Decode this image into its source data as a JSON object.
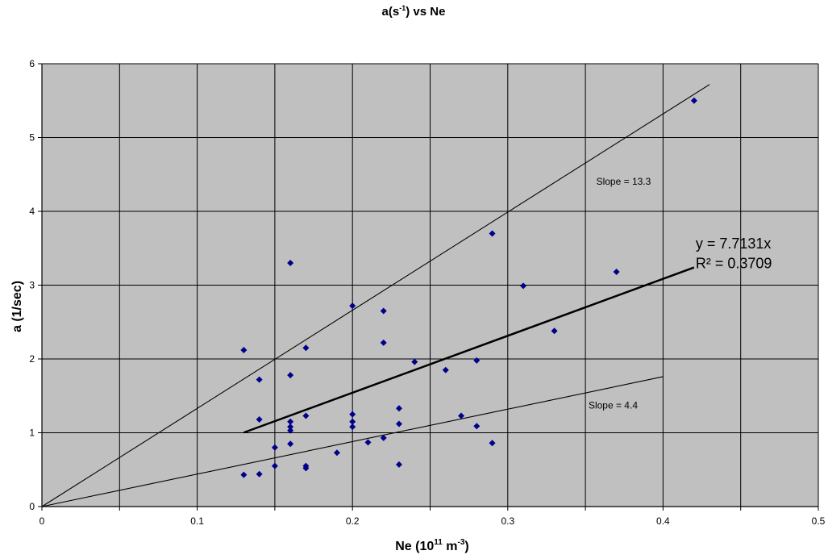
{
  "chart_data": {
    "type": "scatter",
    "title": "a(s",
    "title_sup": "-1",
    "title_rest": ") vs Ne",
    "xlabel": "Ne (10",
    "xlabel_sup1": "11",
    "xlabel_mid": " m",
    "xlabel_sup2": "-3",
    "xlabel_end": ")",
    "ylabel": "a (1/sec)",
    "xlim": [
      0,
      0.5
    ],
    "ylim": [
      0,
      6
    ],
    "xticks": [
      0,
      0.05,
      0.1,
      0.15,
      0.2,
      0.25,
      0.3,
      0.35,
      0.4,
      0.45,
      0.5
    ],
    "xtick_labels": [
      "0",
      "0.1",
      "0.2",
      "0.3",
      "0.4",
      "0.5"
    ],
    "xtick_label_values": [
      0,
      0.1,
      0.2,
      0.3,
      0.4,
      0.5
    ],
    "yticks": [
      0,
      1,
      2,
      3,
      4,
      5,
      6
    ],
    "ytick_labels": [
      "0",
      "1",
      "2",
      "3",
      "4",
      "5",
      "6"
    ],
    "grid": true,
    "plot_background": "#c0c0c0",
    "marker_color": "#00008b",
    "points": [
      [
        0.13,
        2.12
      ],
      [
        0.13,
        0.43
      ],
      [
        0.14,
        1.72
      ],
      [
        0.14,
        1.18
      ],
      [
        0.14,
        0.44
      ],
      [
        0.15,
        0.8
      ],
      [
        0.15,
        0.55
      ],
      [
        0.16,
        3.3
      ],
      [
        0.16,
        1.78
      ],
      [
        0.16,
        1.15
      ],
      [
        0.16,
        1.08
      ],
      [
        0.16,
        1.03
      ],
      [
        0.16,
        0.85
      ],
      [
        0.17,
        2.15
      ],
      [
        0.17,
        1.23
      ],
      [
        0.17,
        0.55
      ],
      [
        0.17,
        0.52
      ],
      [
        0.19,
        0.73
      ],
      [
        0.2,
        2.72
      ],
      [
        0.2,
        1.25
      ],
      [
        0.2,
        1.15
      ],
      [
        0.2,
        1.08
      ],
      [
        0.21,
        0.87
      ],
      [
        0.22,
        2.65
      ],
      [
        0.22,
        2.22
      ],
      [
        0.22,
        0.93
      ],
      [
        0.23,
        1.33
      ],
      [
        0.23,
        1.12
      ],
      [
        0.23,
        0.57
      ],
      [
        0.24,
        1.96
      ],
      [
        0.26,
        1.85
      ],
      [
        0.27,
        1.23
      ],
      [
        0.28,
        1.98
      ],
      [
        0.28,
        1.09
      ],
      [
        0.29,
        3.7
      ],
      [
        0.29,
        0.86
      ],
      [
        0.31,
        2.99
      ],
      [
        0.33,
        2.38
      ],
      [
        0.37,
        3.18
      ],
      [
        0.42,
        5.5
      ]
    ],
    "lines": [
      {
        "slope": 13.3,
        "x_start": 0,
        "x_end": 0.43,
        "weight": "thin"
      },
      {
        "slope": 4.4,
        "x_start": 0,
        "x_end": 0.4,
        "weight": "thin"
      },
      {
        "slope": 7.7131,
        "x_start": 0.13,
        "x_end": 0.42,
        "weight": "thick"
      }
    ],
    "annotations": {
      "slope_high": {
        "text": "Slope = 13.3",
        "x": 0.357,
        "y": 4.36
      },
      "slope_low": {
        "text": "Slope = 4.4",
        "x": 0.352,
        "y": 1.33
      },
      "trend_eq": {
        "text": "y = 7.7131x",
        "x": 0.421,
        "y": 3.5
      },
      "trend_r2": {
        "text": "R² = 0.3709",
        "x": 0.421,
        "y": 3.23
      }
    }
  }
}
